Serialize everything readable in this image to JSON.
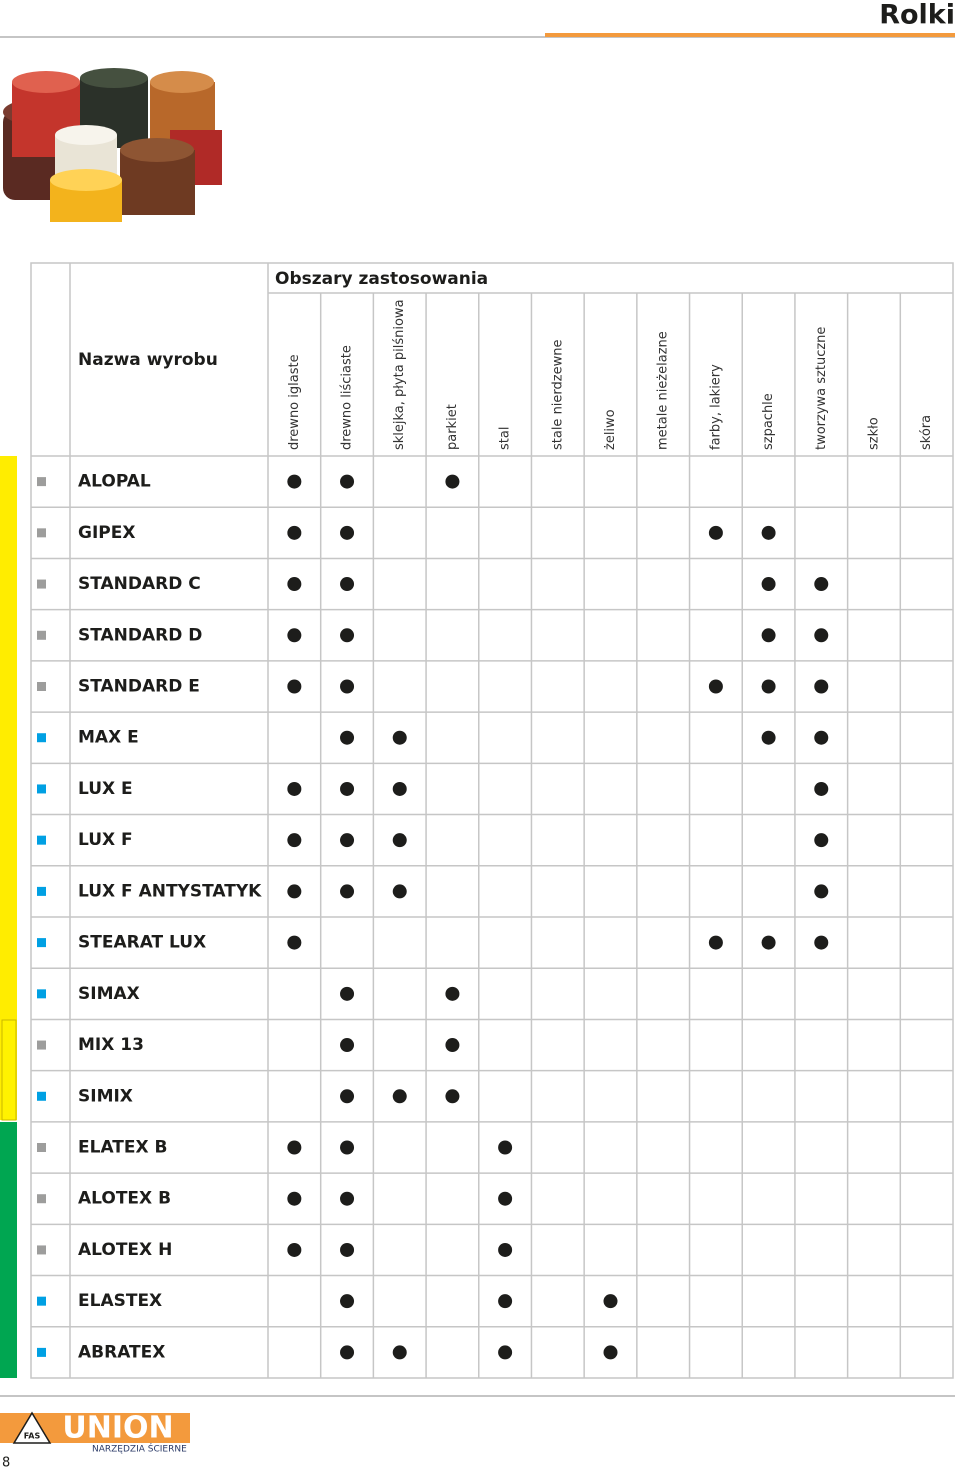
{
  "header": {
    "title": "Rolki"
  },
  "table": {
    "group_header": "Obszary zastosowania",
    "name_header": "Nazwa wyrobu",
    "columns": [
      "drewno iglaste",
      "drewno liściaste",
      "sklejka, płyta pilśniowa",
      "parkiet",
      "stal",
      "stale nierdzewne",
      "żeliwo",
      "metale nieżelazne",
      "farby, lakiery",
      "szpachle",
      "tworzywa sztuczne",
      "szkło",
      "skóra"
    ],
    "rows": [
      {
        "name": "ALOPAL",
        "marker": "#9d9d9c",
        "uses": [
          true,
          true,
          false,
          true,
          false,
          false,
          false,
          false,
          false,
          false,
          false,
          false,
          false
        ]
      },
      {
        "name": "GIPEX",
        "marker": "#9d9d9c",
        "uses": [
          true,
          true,
          false,
          false,
          false,
          false,
          false,
          false,
          true,
          true,
          false,
          false,
          false
        ]
      },
      {
        "name": "STANDARD C",
        "marker": "#9d9d9c",
        "uses": [
          true,
          true,
          false,
          false,
          false,
          false,
          false,
          false,
          false,
          true,
          true,
          false,
          false
        ]
      },
      {
        "name": "STANDARD D",
        "marker": "#9d9d9c",
        "uses": [
          true,
          true,
          false,
          false,
          false,
          false,
          false,
          false,
          false,
          true,
          true,
          false,
          false
        ]
      },
      {
        "name": "STANDARD E",
        "marker": "#9d9d9c",
        "uses": [
          true,
          true,
          false,
          false,
          false,
          false,
          false,
          false,
          true,
          true,
          true,
          false,
          false
        ]
      },
      {
        "name": "MAX E",
        "marker": "#00a0e3",
        "uses": [
          false,
          true,
          true,
          false,
          false,
          false,
          false,
          false,
          false,
          true,
          true,
          false,
          false
        ]
      },
      {
        "name": "LUX E",
        "marker": "#00a0e3",
        "uses": [
          true,
          true,
          true,
          false,
          false,
          false,
          false,
          false,
          false,
          false,
          true,
          false,
          false
        ]
      },
      {
        "name": "LUX F",
        "marker": "#00a0e3",
        "uses": [
          true,
          true,
          true,
          false,
          false,
          false,
          false,
          false,
          false,
          false,
          true,
          false,
          false
        ]
      },
      {
        "name": "LUX F ANTYSTATYK",
        "marker": "#00a0e3",
        "uses": [
          true,
          true,
          true,
          false,
          false,
          false,
          false,
          false,
          false,
          false,
          true,
          false,
          false
        ]
      },
      {
        "name": "STEARAT LUX",
        "marker": "#00a0e3",
        "uses": [
          true,
          false,
          false,
          false,
          false,
          false,
          false,
          false,
          true,
          true,
          true,
          false,
          false
        ]
      },
      {
        "name": "SIMAX",
        "marker": "#00a0e3",
        "uses": [
          false,
          true,
          false,
          true,
          false,
          false,
          false,
          false,
          false,
          false,
          false,
          false,
          false
        ]
      },
      {
        "name": "MIX 13",
        "marker": "#9d9d9c",
        "uses": [
          false,
          true,
          false,
          true,
          false,
          false,
          false,
          false,
          false,
          false,
          false,
          false,
          false
        ]
      },
      {
        "name": "SIMIX",
        "marker": "#00a0e3",
        "uses": [
          false,
          true,
          true,
          true,
          false,
          false,
          false,
          false,
          false,
          false,
          false,
          false,
          false
        ]
      },
      {
        "name": "ELATEX B",
        "marker": "#9d9d9c",
        "uses": [
          true,
          true,
          false,
          false,
          true,
          false,
          false,
          false,
          false,
          false,
          false,
          false,
          false
        ]
      },
      {
        "name": "ALOTEX B",
        "marker": "#9d9d9c",
        "uses": [
          true,
          true,
          false,
          false,
          true,
          false,
          false,
          false,
          false,
          false,
          false,
          false,
          false
        ]
      },
      {
        "name": "ALOTEX H",
        "marker": "#9d9d9c",
        "uses": [
          true,
          true,
          false,
          false,
          true,
          false,
          false,
          false,
          false,
          false,
          false,
          false,
          false
        ]
      },
      {
        "name": "ELASTEX",
        "marker": "#00a0e3",
        "uses": [
          false,
          true,
          false,
          false,
          true,
          false,
          true,
          false,
          false,
          false,
          false,
          false,
          false
        ]
      },
      {
        "name": "ABRATEX",
        "marker": "#00a0e3",
        "uses": [
          false,
          true,
          true,
          false,
          true,
          false,
          true,
          false,
          false,
          false,
          false,
          false,
          false
        ]
      }
    ]
  },
  "footer": {
    "brand": "UNION",
    "badge": "FAS",
    "tagline": "NARZĘDZIA ŚCIERNE",
    "page": "8"
  }
}
